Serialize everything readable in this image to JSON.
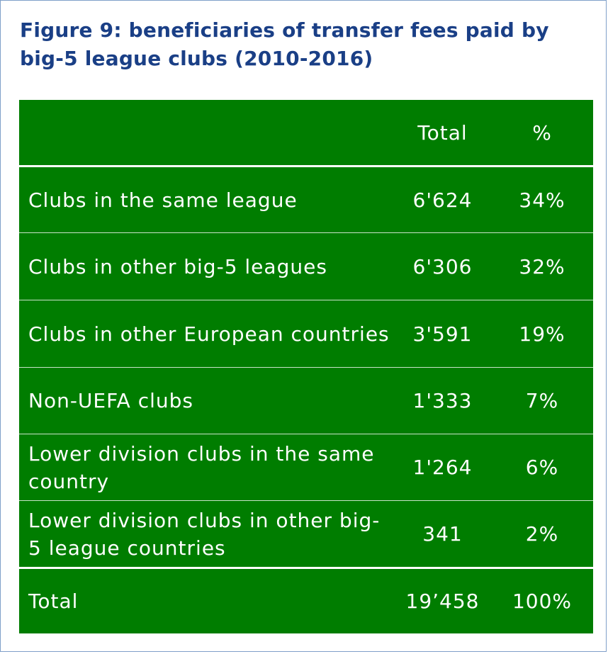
{
  "title": "Figure 9: beneficiaries of transfer fees paid by big-5 league clubs (2010-2016)",
  "colors": {
    "title": "#1a3f86",
    "table_bg": "#007d00",
    "text": "#ffffff",
    "frame_border": "#7f9fc9"
  },
  "chart_data": {
    "type": "table",
    "title": "Figure 9: beneficiaries of transfer fees paid by big-5 league clubs (2010-2016)",
    "columns": [
      "",
      "Total",
      "%"
    ],
    "rows": [
      {
        "label": "Clubs in the same league",
        "total": "6'624",
        "pct": "34%"
      },
      {
        "label": "Clubs in other big-5 leagues",
        "total": "6'306",
        "pct": "32%"
      },
      {
        "label": "Clubs in other European countries",
        "total": "3'591",
        "pct": "19%"
      },
      {
        "label": "Non-UEFA clubs",
        "total": "1'333",
        "pct": "7%"
      },
      {
        "label": "Lower division clubs in the same country",
        "total": "1'264",
        "pct": "6%"
      },
      {
        "label": "Lower division clubs in other big-5 league countries",
        "total": "341",
        "pct": "2%"
      }
    ],
    "total_row": {
      "label": "Total",
      "total": "19’458",
      "pct": "100%"
    }
  }
}
